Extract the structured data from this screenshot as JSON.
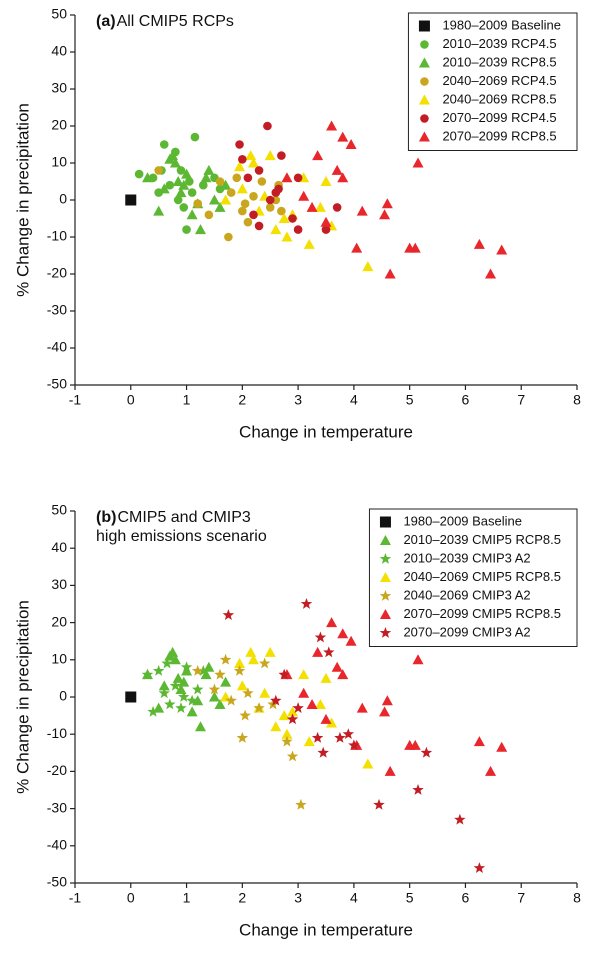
{
  "chart_data": [
    {
      "type": "scatter",
      "panel_label": "(a)",
      "title": [
        "All CMIP5 RCPs"
      ],
      "xlabel": "Change in temperature",
      "ylabel": "% Change in precipitation",
      "xlim": [
        -1,
        8
      ],
      "ylim": [
        -50,
        50
      ],
      "xticks": [
        -1,
        0,
        1,
        2,
        3,
        4,
        5,
        6,
        7,
        8
      ],
      "yticks": [
        -50,
        -40,
        -30,
        -20,
        -10,
        0,
        10,
        20,
        30,
        40,
        50
      ],
      "legend": "upper right",
      "series": [
        {
          "name": "1980–2009 Baseline",
          "color": "#111111",
          "marker": "square",
          "x": [
            0
          ],
          "y": [
            0
          ]
        },
        {
          "name": "2010–2039 RCP4.5",
          "color": "#5cb832",
          "marker": "circle",
          "x": [
            0.15,
            0.4,
            0.5,
            0.6,
            0.7,
            0.8,
            0.85,
            0.95,
            1.0,
            1.05,
            1.1,
            1.15,
            1.2,
            1.3,
            1.5,
            1.6,
            0.55,
            0.9
          ],
          "y": [
            7,
            6,
            2,
            15,
            4,
            13,
            0,
            -2,
            -8,
            5,
            2,
            17,
            -1,
            4,
            6,
            3,
            8,
            8
          ]
        },
        {
          "name": "2010–2039 RCP8.5",
          "color": "#5cb832",
          "marker": "triangle",
          "x": [
            0.3,
            0.5,
            0.6,
            0.75,
            0.8,
            0.85,
            0.9,
            1.0,
            1.1,
            1.2,
            1.25,
            1.35,
            1.4,
            1.5,
            1.6,
            1.7,
            0.7,
            0.95
          ],
          "y": [
            6,
            -3,
            3,
            12,
            10,
            5,
            2,
            7,
            -4,
            -1,
            -8,
            6,
            8,
            0,
            -2,
            4,
            11,
            4
          ]
        },
        {
          "name": "2040–2069 RCP4.5",
          "color": "#c9a61e",
          "marker": "circle",
          "x": [
            0.5,
            1.2,
            1.4,
            1.6,
            1.75,
            1.8,
            1.9,
            2.05,
            2.1,
            2.2,
            2.35,
            2.5,
            2.6,
            2.65,
            2.7,
            2.0
          ],
          "y": [
            8,
            -1,
            -4,
            5,
            -10,
            2,
            6,
            -1,
            -6,
            1,
            5,
            -2,
            0,
            4,
            -3,
            -3
          ]
        },
        {
          "name": "2040–2069 RCP8.5",
          "color": "#f3df00",
          "marker": "triangle",
          "x": [
            1.7,
            1.95,
            2.0,
            2.15,
            2.2,
            2.3,
            2.4,
            2.5,
            2.6,
            2.75,
            2.8,
            3.1,
            3.2,
            3.4,
            3.5,
            3.6,
            4.25,
            2.9
          ],
          "y": [
            0,
            9,
            3,
            12,
            10,
            -3,
            1,
            12,
            -8,
            -5,
            -10,
            6,
            -12,
            -2,
            5,
            -7,
            -18,
            -4
          ]
        },
        {
          "name": "2070–2099 RCP4.5",
          "color": "#c21d24",
          "marker": "circle",
          "x": [
            1.95,
            2.0,
            2.1,
            2.2,
            2.3,
            2.45,
            2.5,
            2.6,
            2.7,
            2.9,
            3.0,
            3.0,
            3.5,
            3.7,
            2.3,
            2.65
          ],
          "y": [
            15,
            11,
            6,
            -4,
            -7,
            20,
            0,
            2,
            12,
            -5,
            -8,
            6,
            -8,
            -2,
            8,
            3
          ]
        },
        {
          "name": "2070–2099 RCP8.5",
          "color": "#e8262b",
          "marker": "triangle",
          "x": [
            2.8,
            3.1,
            3.25,
            3.35,
            3.5,
            3.6,
            3.7,
            3.8,
            3.8,
            3.95,
            4.05,
            4.15,
            4.55,
            4.6,
            4.65,
            5.0,
            5.1,
            5.15,
            6.25,
            6.45,
            6.65
          ],
          "y": [
            6,
            1,
            -2,
            12,
            -6,
            20,
            8,
            6,
            17,
            15,
            -13,
            -3,
            -4,
            -1,
            -20,
            -13,
            -13,
            10,
            -12,
            -20,
            -13.5
          ]
        }
      ]
    },
    {
      "type": "scatter",
      "panel_label": "(b)",
      "title": [
        "CMIP5 and CMIP3",
        "high emissions scenario"
      ],
      "xlabel": "Change in temperature",
      "ylabel": "% Change in precipitation",
      "xlim": [
        -1,
        8
      ],
      "ylim": [
        -50,
        50
      ],
      "xticks": [
        -1,
        0,
        1,
        2,
        3,
        4,
        5,
        6,
        7,
        8
      ],
      "yticks": [
        -50,
        -40,
        -30,
        -20,
        -10,
        0,
        10,
        20,
        30,
        40,
        50
      ],
      "legend": "upper right",
      "series": [
        {
          "name": "1980–2009 Baseline",
          "color": "#111111",
          "marker": "square",
          "x": [
            0
          ],
          "y": [
            0
          ]
        },
        {
          "name": "2010–2039 CMIP5 RCP8.5",
          "color": "#5cb832",
          "marker": "triangle",
          "x": [
            0.3,
            0.5,
            0.6,
            0.75,
            0.8,
            0.85,
            0.9,
            1.0,
            1.1,
            1.2,
            1.25,
            1.35,
            1.4,
            1.5,
            1.6,
            1.7,
            0.7,
            0.95
          ],
          "y": [
            6,
            -3,
            3,
            12,
            10,
            5,
            2,
            7,
            -4,
            -1,
            -8,
            6,
            8,
            0,
            -2,
            4,
            11,
            4
          ]
        },
        {
          "name": "2010–2039 CMIP3 A2",
          "color": "#5cb832",
          "marker": "star",
          "x": [
            0.3,
            0.4,
            0.5,
            0.6,
            0.7,
            0.8,
            0.9,
            1.0,
            1.1,
            1.2,
            1.3,
            0.65,
            0.95
          ],
          "y": [
            6,
            -4,
            7,
            1,
            -2,
            3,
            -3,
            8,
            -1,
            2,
            7,
            9,
            0
          ]
        },
        {
          "name": "2040–2069 CMIP5 RCP8.5",
          "color": "#f3df00",
          "marker": "triangle",
          "x": [
            1.7,
            1.95,
            2.0,
            2.15,
            2.2,
            2.3,
            2.4,
            2.5,
            2.6,
            2.75,
            2.8,
            3.1,
            3.2,
            3.4,
            3.5,
            3.6,
            4.25,
            2.9
          ],
          "y": [
            0,
            9,
            3,
            12,
            10,
            -3,
            1,
            12,
            -8,
            -5,
            -10,
            6,
            -12,
            -2,
            5,
            -7,
            -18,
            -4
          ]
        },
        {
          "name": "2040–2069 CMIP3 A2",
          "color": "#c9a61e",
          "marker": "star",
          "x": [
            1.2,
            1.5,
            1.6,
            1.7,
            1.95,
            2.0,
            2.05,
            2.1,
            2.3,
            2.4,
            2.55,
            2.8,
            2.9,
            3.05,
            1.8
          ],
          "y": [
            7,
            2,
            6,
            10,
            7,
            -11,
            -5,
            1,
            -3,
            9,
            -2,
            -12,
            -16,
            -29,
            -1
          ]
        },
        {
          "name": "2070–2099 CMIP5 RCP8.5",
          "color": "#e8262b",
          "marker": "triangle",
          "x": [
            2.8,
            3.1,
            3.25,
            3.35,
            3.5,
            3.6,
            3.7,
            3.8,
            3.8,
            3.95,
            4.05,
            4.15,
            4.55,
            4.6,
            4.65,
            5.0,
            5.1,
            5.15,
            6.25,
            6.45,
            6.65
          ],
          "y": [
            6,
            1,
            -2,
            12,
            -6,
            20,
            8,
            6,
            17,
            15,
            -13,
            -3,
            -4,
            -1,
            -20,
            -13,
            -13,
            10,
            -12,
            -20,
            -13.5
          ]
        },
        {
          "name": "2070–2099 CMIP3 A2",
          "color": "#c21d24",
          "marker": "star",
          "x": [
            1.75,
            2.75,
            2.9,
            3.15,
            3.35,
            3.4,
            3.45,
            3.55,
            3.75,
            3.9,
            4.0,
            4.45,
            5.15,
            5.3,
            5.9,
            6.25,
            2.6,
            3.0
          ],
          "y": [
            22,
            6,
            -6,
            25,
            -11,
            16,
            -15,
            12,
            -11,
            -10,
            -13,
            -29,
            -25,
            -15,
            -33,
            -46,
            -1,
            -3
          ]
        }
      ]
    }
  ]
}
